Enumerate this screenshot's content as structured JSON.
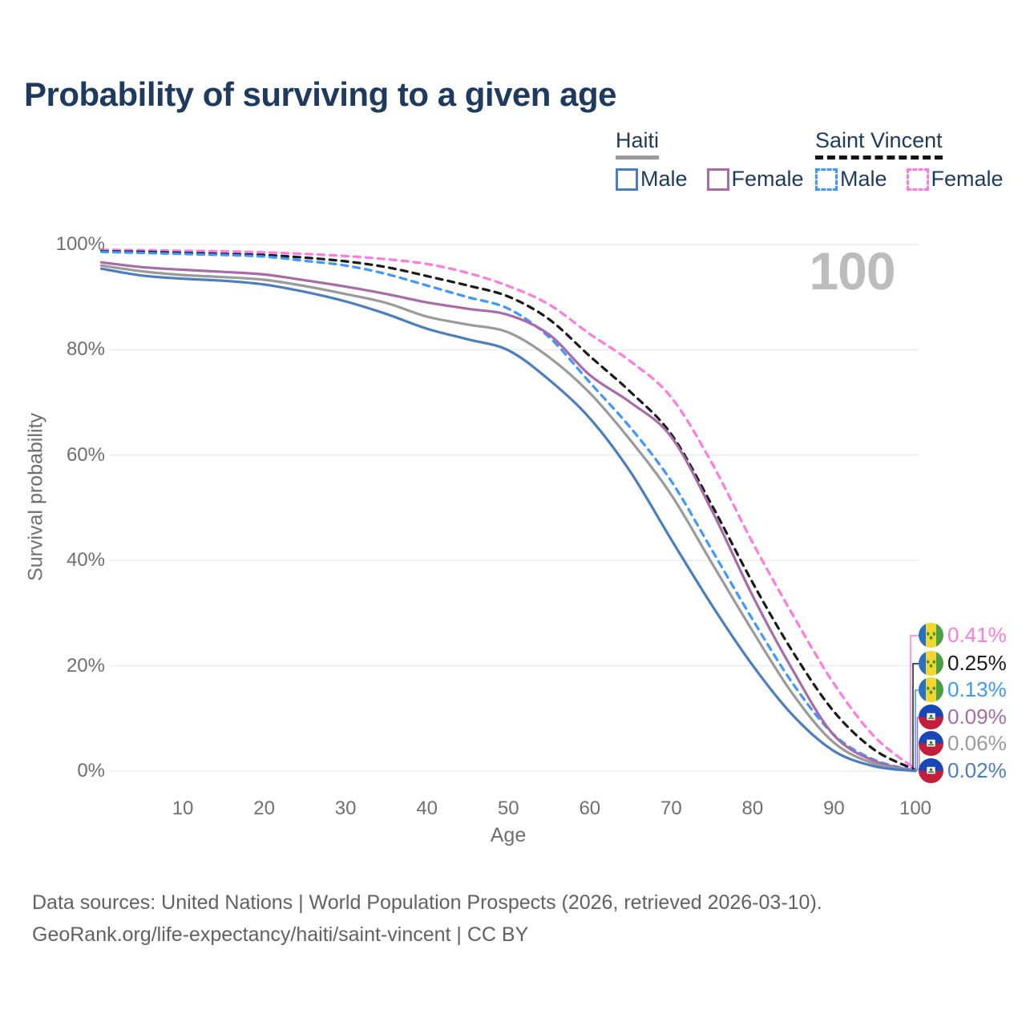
{
  "page": {
    "title": "Probability of surviving to a given age",
    "watermark": "100"
  },
  "legend": {
    "groups": [
      {
        "name": "Haiti",
        "line_style": "solid",
        "underline_color": "#9a9a9a",
        "items": [
          {
            "label": "Male",
            "color": "#4a7ec0",
            "dashed": false
          },
          {
            "label": "Female",
            "color": "#a76ba9",
            "dashed": false
          }
        ]
      },
      {
        "name": "Saint Vincent",
        "line_style": "dashed",
        "underline_color": "#141414",
        "items": [
          {
            "label": "Male",
            "color": "#3e97ff",
            "dashed": true
          },
          {
            "label": "Female",
            "color": "#ff7ae0",
            "dashed": true
          }
        ]
      }
    ]
  },
  "chart_data": {
    "type": "line",
    "title": "Probability of surviving to a given age",
    "xlabel": "Age",
    "ylabel": "Survival probability",
    "xlim": [
      0,
      100
    ],
    "ylim": [
      0,
      100
    ],
    "grid": "horizontal",
    "grid_color": "#e9e9e9",
    "x_axis": {
      "ticks": [
        10,
        20,
        30,
        40,
        50,
        60,
        70,
        80,
        90,
        100
      ]
    },
    "y_axis": {
      "ticks": [
        {
          "value": 0,
          "label": "0%"
        },
        {
          "value": 20,
          "label": "20%"
        },
        {
          "value": 40,
          "label": "40%"
        },
        {
          "value": 60,
          "label": "60%"
        },
        {
          "value": 80,
          "label": "80%"
        },
        {
          "value": 100,
          "label": "100%"
        }
      ]
    },
    "ages": [
      0,
      5,
      10,
      15,
      20,
      25,
      30,
      35,
      40,
      45,
      50,
      55,
      60,
      65,
      70,
      75,
      80,
      85,
      90,
      95,
      100
    ],
    "series": [
      {
        "id": "saint-vincent-female",
        "name": "Saint Vincent Female",
        "country": "Saint Vincent",
        "sex": "Female",
        "color": "#ff7ae0",
        "dashed": true,
        "flag": "saint-vincent",
        "end_label": "0.41%",
        "end_value": 0.41,
        "values": [
          99.0,
          98.9,
          98.8,
          98.7,
          98.5,
          98.2,
          97.8,
          97.2,
          96.3,
          94.6,
          92.1,
          88.6,
          83.0,
          77.8,
          71.0,
          58.5,
          43.4,
          29.5,
          16.6,
          6.5,
          0.41
        ]
      },
      {
        "id": "saint-vincent-both",
        "name": "Saint Vincent",
        "country": "Saint Vincent",
        "sex": "Both",
        "color": "#1a1a1a",
        "dashed": true,
        "flag": "saint-vincent",
        "end_label": "0.25%",
        "end_value": 0.25,
        "values": [
          98.7,
          98.6,
          98.4,
          98.2,
          98.0,
          97.5,
          96.8,
          95.7,
          94.0,
          92.2,
          90.1,
          85.8,
          78.8,
          72.0,
          64.0,
          50.5,
          35.8,
          22.5,
          11.3,
          4.0,
          0.25
        ]
      },
      {
        "id": "saint-vincent-male",
        "name": "Saint Vincent Male",
        "country": "Saint Vincent",
        "sex": "Male",
        "color": "#3e97ff",
        "dashed": true,
        "flag": "saint-vincent",
        "end_label": "0.13%",
        "end_value": 0.13,
        "values": [
          98.6,
          98.4,
          98.2,
          98.0,
          97.7,
          96.9,
          96.0,
          94.4,
          92.2,
          90.0,
          87.8,
          82.4,
          73.8,
          65.2,
          55.1,
          42.0,
          28.8,
          16.5,
          6.9,
          2.1,
          0.13
        ]
      },
      {
        "id": "haiti-female",
        "name": "Haiti Female",
        "country": "Haiti",
        "sex": "Female",
        "color": "#a76ba9",
        "dashed": false,
        "flag": "haiti",
        "end_label": "0.09%",
        "end_value": 0.09,
        "values": [
          96.6,
          95.7,
          95.2,
          94.8,
          94.3,
          93.2,
          92.0,
          90.6,
          89.0,
          87.8,
          86.6,
          82.9,
          75.2,
          70.0,
          63.5,
          49.5,
          33.3,
          19.0,
          6.8,
          1.9,
          0.09
        ]
      },
      {
        "id": "haiti-both",
        "name": "Haiti",
        "country": "Haiti",
        "sex": "Both",
        "color": "#9a9a9a",
        "dashed": false,
        "flag": "haiti",
        "end_label": "0.06%",
        "end_value": 0.06,
        "values": [
          96.0,
          94.9,
          94.2,
          93.8,
          93.3,
          92.1,
          90.6,
          88.9,
          86.3,
          84.8,
          83.3,
          78.6,
          71.8,
          62.8,
          52.5,
          39.5,
          26.6,
          14.5,
          5.4,
          1.4,
          0.06
        ]
      },
      {
        "id": "haiti-male",
        "name": "Haiti Male",
        "country": "Haiti",
        "sex": "Male",
        "color": "#4a7ec0",
        "dashed": false,
        "flag": "haiti",
        "end_label": "0.02%",
        "end_value": 0.02,
        "values": [
          95.4,
          94.1,
          93.5,
          93.1,
          92.4,
          91.0,
          89.2,
          86.8,
          84.0,
          82.0,
          79.9,
          74.3,
          67.0,
          56.8,
          44.0,
          31.5,
          20.1,
          10.5,
          3.8,
          0.9,
          0.02
        ]
      }
    ]
  },
  "flags": {
    "saint-vincent": {
      "blue": "#2a70c2",
      "yellow": "#f4d72c",
      "green": "#4c9e45",
      "diamond": "#3d8e33"
    },
    "haiti": {
      "blue": "#1a47b8",
      "red": "#c41f3a",
      "panel": "#ffffff",
      "emblem": "#2d7a2d"
    }
  },
  "footer": {
    "line1": "Data sources: United Nations | World Population Prospects (2026, retrieved 2026-03-10).",
    "line2": "GeoRank.org/life-expectancy/haiti/saint-vincent | CC BY"
  }
}
